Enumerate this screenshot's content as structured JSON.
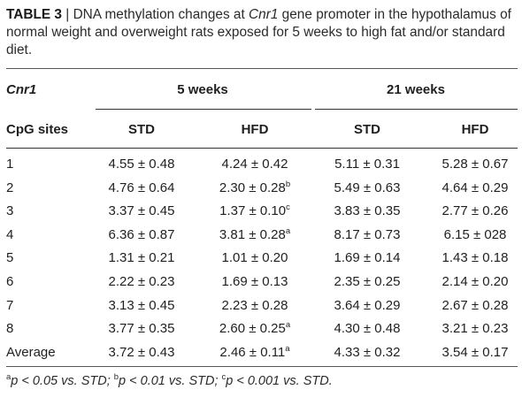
{
  "caption": {
    "label": "TABLE 3",
    "separator": " | ",
    "text_before": "DNA methylation changes at ",
    "gene": "Cnr1",
    "text_after": " gene promoter in the hypothalamus of normal weight and overweight rats exposed for 5 weeks to high fat and/or standard diet."
  },
  "table": {
    "gene_header": "Cnr1",
    "group_headers": [
      "5 weeks",
      "21 weeks"
    ],
    "row_header": "CpG sites",
    "column_headers": [
      "STD",
      "HFD",
      "STD",
      "HFD"
    ],
    "rows": [
      {
        "site": "1",
        "cells": [
          {
            "v": "4.55 ± 0.48",
            "s": ""
          },
          {
            "v": "4.24 ± 0.42",
            "s": ""
          },
          {
            "v": "5.11 ± 0.31",
            "s": ""
          },
          {
            "v": "5.28 ± 0.67",
            "s": ""
          }
        ]
      },
      {
        "site": "2",
        "cells": [
          {
            "v": "4.76 ± 0.64",
            "s": ""
          },
          {
            "v": "2.30 ± 0.28",
            "s": "b"
          },
          {
            "v": "5.49 ± 0.63",
            "s": ""
          },
          {
            "v": "4.64 ± 0.29",
            "s": ""
          }
        ]
      },
      {
        "site": "3",
        "cells": [
          {
            "v": "3.37 ± 0.45",
            "s": ""
          },
          {
            "v": "1.37 ± 0.10",
            "s": "c"
          },
          {
            "v": "3.83 ± 0.35",
            "s": ""
          },
          {
            "v": "2.77 ± 0.26",
            "s": ""
          }
        ]
      },
      {
        "site": "4",
        "cells": [
          {
            "v": "6.36 ± 0.87",
            "s": ""
          },
          {
            "v": "3.81 ± 0.28",
            "s": "a"
          },
          {
            "v": "8.17 ± 0.73",
            "s": ""
          },
          {
            "v": "6.15 ± 028",
            "s": ""
          }
        ]
      },
      {
        "site": "5",
        "cells": [
          {
            "v": "1.31 ± 0.21",
            "s": ""
          },
          {
            "v": "1.01 ± 0.20",
            "s": ""
          },
          {
            "v": "1.69 ± 0.14",
            "s": ""
          },
          {
            "v": "1.43 ± 0.18",
            "s": ""
          }
        ]
      },
      {
        "site": "6",
        "cells": [
          {
            "v": "2.22 ± 0.23",
            "s": ""
          },
          {
            "v": "1.69 ± 0.13",
            "s": ""
          },
          {
            "v": "2.35 ± 0.25",
            "s": ""
          },
          {
            "v": "2.14 ± 0.20",
            "s": ""
          }
        ]
      },
      {
        "site": "7",
        "cells": [
          {
            "v": "3.13 ± 0.45",
            "s": ""
          },
          {
            "v": "2.23 ± 0.28",
            "s": ""
          },
          {
            "v": "3.64 ± 0.29",
            "s": ""
          },
          {
            "v": "2.67 ± 0.28",
            "s": ""
          }
        ]
      },
      {
        "site": "8",
        "cells": [
          {
            "v": "3.77 ± 0.35",
            "s": ""
          },
          {
            "v": "2.60 ± 0.25",
            "s": "a"
          },
          {
            "v": "4.30 ± 0.48",
            "s": ""
          },
          {
            "v": "3.21 ± 0.23",
            "s": ""
          }
        ]
      },
      {
        "site": "Average",
        "cells": [
          {
            "v": "3.72 ± 0.43",
            "s": ""
          },
          {
            "v": "2.46 ± 0.11",
            "s": "a"
          },
          {
            "v": "4.33 ± 0.32",
            "s": ""
          },
          {
            "v": "3.54 ± 0.17",
            "s": ""
          }
        ]
      }
    ]
  },
  "footnote": {
    "a_mark": "a",
    "a_text": "p < 0.05 vs. STD; ",
    "b_mark": "b",
    "b_text": "p < 0.01 vs. STD; ",
    "c_mark": "c",
    "c_text": "p < 0.001 vs. STD."
  }
}
